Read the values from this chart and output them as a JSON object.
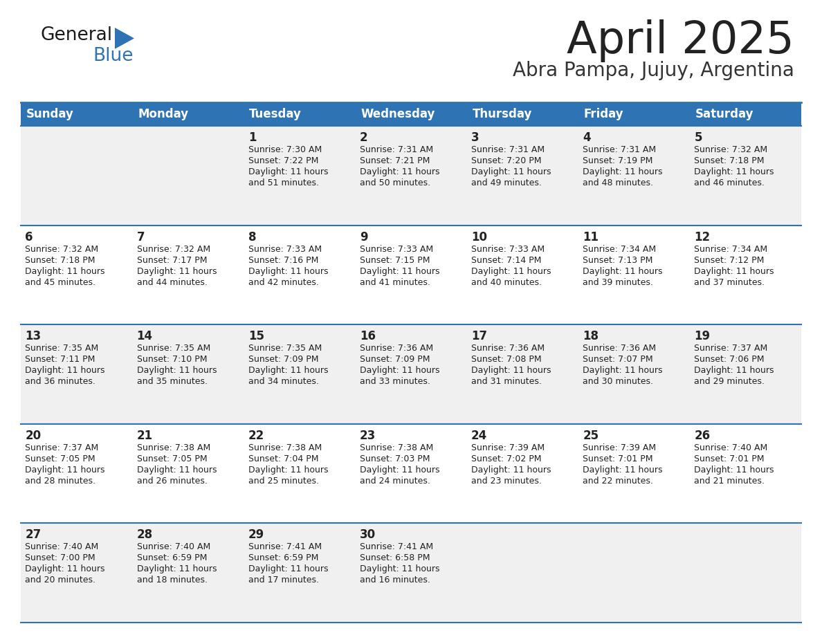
{
  "title": "April 2025",
  "subtitle": "Abra Pampa, Jujuy, Argentina",
  "header_bg": "#2E74B5",
  "header_text": "#FFFFFF",
  "day_names": [
    "Sunday",
    "Monday",
    "Tuesday",
    "Wednesday",
    "Thursday",
    "Friday",
    "Saturday"
  ],
  "row_bg_even": "#F0F0F0",
  "row_bg_odd": "#FFFFFF",
  "cell_text_color": "#222222",
  "day_num_color": "#222222",
  "title_color": "#222222",
  "subtitle_color": "#333333",
  "separator_color": "#2E74B5",
  "logo_general_color": "#1A1A1A",
  "logo_blue_color": "#2E74B5",
  "logo_triangle_color": "#2E74B5",
  "weeks": [
    {
      "days": [
        {
          "date": "",
          "sunrise": "",
          "sunset": "",
          "daylight": ""
        },
        {
          "date": "",
          "sunrise": "",
          "sunset": "",
          "daylight": ""
        },
        {
          "date": "1",
          "sunrise": "Sunrise: 7:30 AM",
          "sunset": "Sunset: 7:22 PM",
          "daylight": "Daylight: 11 hours\nand 51 minutes."
        },
        {
          "date": "2",
          "sunrise": "Sunrise: 7:31 AM",
          "sunset": "Sunset: 7:21 PM",
          "daylight": "Daylight: 11 hours\nand 50 minutes."
        },
        {
          "date": "3",
          "sunrise": "Sunrise: 7:31 AM",
          "sunset": "Sunset: 7:20 PM",
          "daylight": "Daylight: 11 hours\nand 49 minutes."
        },
        {
          "date": "4",
          "sunrise": "Sunrise: 7:31 AM",
          "sunset": "Sunset: 7:19 PM",
          "daylight": "Daylight: 11 hours\nand 48 minutes."
        },
        {
          "date": "5",
          "sunrise": "Sunrise: 7:32 AM",
          "sunset": "Sunset: 7:18 PM",
          "daylight": "Daylight: 11 hours\nand 46 minutes."
        }
      ]
    },
    {
      "days": [
        {
          "date": "6",
          "sunrise": "Sunrise: 7:32 AM",
          "sunset": "Sunset: 7:18 PM",
          "daylight": "Daylight: 11 hours\nand 45 minutes."
        },
        {
          "date": "7",
          "sunrise": "Sunrise: 7:32 AM",
          "sunset": "Sunset: 7:17 PM",
          "daylight": "Daylight: 11 hours\nand 44 minutes."
        },
        {
          "date": "8",
          "sunrise": "Sunrise: 7:33 AM",
          "sunset": "Sunset: 7:16 PM",
          "daylight": "Daylight: 11 hours\nand 42 minutes."
        },
        {
          "date": "9",
          "sunrise": "Sunrise: 7:33 AM",
          "sunset": "Sunset: 7:15 PM",
          "daylight": "Daylight: 11 hours\nand 41 minutes."
        },
        {
          "date": "10",
          "sunrise": "Sunrise: 7:33 AM",
          "sunset": "Sunset: 7:14 PM",
          "daylight": "Daylight: 11 hours\nand 40 minutes."
        },
        {
          "date": "11",
          "sunrise": "Sunrise: 7:34 AM",
          "sunset": "Sunset: 7:13 PM",
          "daylight": "Daylight: 11 hours\nand 39 minutes."
        },
        {
          "date": "12",
          "sunrise": "Sunrise: 7:34 AM",
          "sunset": "Sunset: 7:12 PM",
          "daylight": "Daylight: 11 hours\nand 37 minutes."
        }
      ]
    },
    {
      "days": [
        {
          "date": "13",
          "sunrise": "Sunrise: 7:35 AM",
          "sunset": "Sunset: 7:11 PM",
          "daylight": "Daylight: 11 hours\nand 36 minutes."
        },
        {
          "date": "14",
          "sunrise": "Sunrise: 7:35 AM",
          "sunset": "Sunset: 7:10 PM",
          "daylight": "Daylight: 11 hours\nand 35 minutes."
        },
        {
          "date": "15",
          "sunrise": "Sunrise: 7:35 AM",
          "sunset": "Sunset: 7:09 PM",
          "daylight": "Daylight: 11 hours\nand 34 minutes."
        },
        {
          "date": "16",
          "sunrise": "Sunrise: 7:36 AM",
          "sunset": "Sunset: 7:09 PM",
          "daylight": "Daylight: 11 hours\nand 33 minutes."
        },
        {
          "date": "17",
          "sunrise": "Sunrise: 7:36 AM",
          "sunset": "Sunset: 7:08 PM",
          "daylight": "Daylight: 11 hours\nand 31 minutes."
        },
        {
          "date": "18",
          "sunrise": "Sunrise: 7:36 AM",
          "sunset": "Sunset: 7:07 PM",
          "daylight": "Daylight: 11 hours\nand 30 minutes."
        },
        {
          "date": "19",
          "sunrise": "Sunrise: 7:37 AM",
          "sunset": "Sunset: 7:06 PM",
          "daylight": "Daylight: 11 hours\nand 29 minutes."
        }
      ]
    },
    {
      "days": [
        {
          "date": "20",
          "sunrise": "Sunrise: 7:37 AM",
          "sunset": "Sunset: 7:05 PM",
          "daylight": "Daylight: 11 hours\nand 28 minutes."
        },
        {
          "date": "21",
          "sunrise": "Sunrise: 7:38 AM",
          "sunset": "Sunset: 7:05 PM",
          "daylight": "Daylight: 11 hours\nand 26 minutes."
        },
        {
          "date": "22",
          "sunrise": "Sunrise: 7:38 AM",
          "sunset": "Sunset: 7:04 PM",
          "daylight": "Daylight: 11 hours\nand 25 minutes."
        },
        {
          "date": "23",
          "sunrise": "Sunrise: 7:38 AM",
          "sunset": "Sunset: 7:03 PM",
          "daylight": "Daylight: 11 hours\nand 24 minutes."
        },
        {
          "date": "24",
          "sunrise": "Sunrise: 7:39 AM",
          "sunset": "Sunset: 7:02 PM",
          "daylight": "Daylight: 11 hours\nand 23 minutes."
        },
        {
          "date": "25",
          "sunrise": "Sunrise: 7:39 AM",
          "sunset": "Sunset: 7:01 PM",
          "daylight": "Daylight: 11 hours\nand 22 minutes."
        },
        {
          "date": "26",
          "sunrise": "Sunrise: 7:40 AM",
          "sunset": "Sunset: 7:01 PM",
          "daylight": "Daylight: 11 hours\nand 21 minutes."
        }
      ]
    },
    {
      "days": [
        {
          "date": "27",
          "sunrise": "Sunrise: 7:40 AM",
          "sunset": "Sunset: 7:00 PM",
          "daylight": "Daylight: 11 hours\nand 20 minutes."
        },
        {
          "date": "28",
          "sunrise": "Sunrise: 7:40 AM",
          "sunset": "Sunset: 6:59 PM",
          "daylight": "Daylight: 11 hours\nand 18 minutes."
        },
        {
          "date": "29",
          "sunrise": "Sunrise: 7:41 AM",
          "sunset": "Sunset: 6:59 PM",
          "daylight": "Daylight: 11 hours\nand 17 minutes."
        },
        {
          "date": "30",
          "sunrise": "Sunrise: 7:41 AM",
          "sunset": "Sunset: 6:58 PM",
          "daylight": "Daylight: 11 hours\nand 16 minutes."
        },
        {
          "date": "",
          "sunrise": "",
          "sunset": "",
          "daylight": ""
        },
        {
          "date": "",
          "sunrise": "",
          "sunset": "",
          "daylight": ""
        },
        {
          "date": "",
          "sunrise": "",
          "sunset": "",
          "daylight": ""
        }
      ]
    }
  ]
}
